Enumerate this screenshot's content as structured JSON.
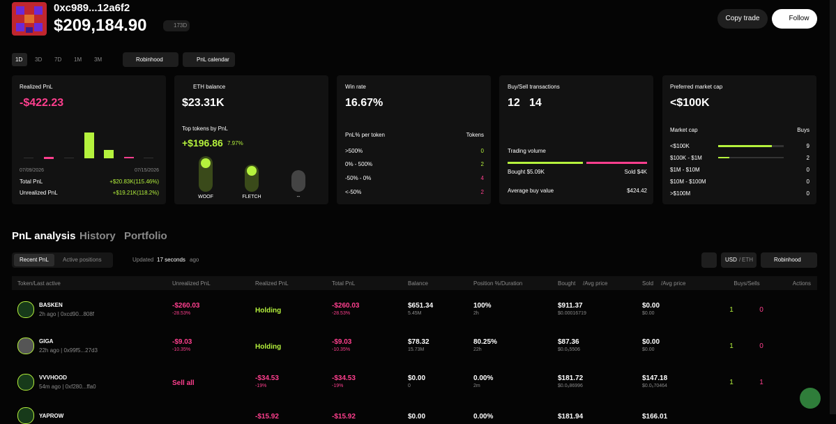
{
  "header": {
    "address": "0xc989...12a6f2",
    "balance": "$209,184.90",
    "age": "173D",
    "copy_trade": "Copy trade",
    "follow": "Follow"
  },
  "toolbar": {
    "timeframes": [
      "1D",
      "3D",
      "7D",
      "1M",
      "3M"
    ],
    "chain": "Robinhood",
    "pnl_calendar": "PnL calendar"
  },
  "cards": {
    "realized": {
      "label": "Realized PnL",
      "value": "-$422.23",
      "date_start": "07/09/2026",
      "date_end": "07/15/2026",
      "total_label": "Total PnL",
      "total_value": "+$20.83K(115.46%)",
      "unrealized_label": "Unrealized PnL",
      "unrealized_value": "+$19.21K(118.2%)"
    },
    "eth": {
      "label": "ETH balance",
      "value": "$23.31K",
      "top_label": "Top tokens by PnL",
      "top_value": "+$196.86",
      "top_pct": "7.97%",
      "tokens": [
        "WOOF",
        "FLETCH",
        "--"
      ]
    },
    "winrate": {
      "label": "Win rate",
      "value": "16.67%",
      "per_token": "PnL% per token",
      "tokens_header": "Tokens",
      "rows": [
        [
          ">500%",
          "0"
        ],
        [
          "0% - 500%",
          "2"
        ],
        [
          "-50% - 0%",
          "4"
        ],
        [
          "<-50%",
          "2"
        ]
      ]
    },
    "buysell": {
      "label": "Buy/Sell transactions",
      "buys": "12",
      "sells": "14",
      "volume_label": "Trading volume",
      "bought": "Bought $5.09K",
      "sold": "Sold $4K",
      "avg_label": "Average buy value",
      "avg_value": "$424.42"
    },
    "mcap": {
      "label": "Preferred market cap",
      "value": "<$100K",
      "header": [
        "Market cap",
        "Buys"
      ],
      "rows": [
        [
          "<$100K",
          "9"
        ],
        [
          "$100K - $1M",
          "2"
        ],
        [
          "$1M - $10M",
          "0"
        ],
        [
          "$10M - $100M",
          "0"
        ],
        [
          ">$100M",
          "0"
        ]
      ]
    }
  },
  "tabs": [
    "PnL analysis",
    "History",
    "Portfolio"
  ],
  "subtabs": [
    "Recent PnL",
    "Active positions"
  ],
  "updated": {
    "prefix": "Updated",
    "value": "17 seconds",
    "suffix": "ago"
  },
  "currency": [
    "USD",
    "/",
    "ETH"
  ],
  "chain2": "Robinhood",
  "table": {
    "columns": [
      "Token/Last active",
      "Unrealized PnL",
      "Realized PnL",
      "Total PnL",
      "Balance",
      "Position %/Duration",
      "Bought",
      "/Avg price",
      "Sold",
      "/Avg price",
      "Buys/Sells",
      "Actions"
    ],
    "rows": [
      [
        [
          "BASKEN",
          "2h ago | 0xcd90...808f"
        ],
        [
          "-$260.03",
          "-28.53%"
        ],
        [
          "Holding"
        ],
        [
          "-$260.03",
          "-28.53%"
        ],
        [
          "$651.34",
          "5.45M"
        ],
        [
          "100%",
          "2h"
        ],
        [
          "$911.37",
          "$0.00016719"
        ],
        [
          "$0.00",
          "$0.00"
        ],
        [
          "1",
          "0"
        ]
      ],
      [
        [
          "GIGA",
          "22h ago | 0x99f5...27d3"
        ],
        [
          "-$9.03",
          "-10.35%"
        ],
        [
          "Holding"
        ],
        [
          "-$9.03",
          "-10.35%"
        ],
        [
          "$78.32",
          "15.73M"
        ],
        [
          "80.25%",
          "22h"
        ],
        [
          "$87.36",
          "$0.0₅5506"
        ],
        [
          "$0.00",
          "$0.00"
        ],
        [
          "1",
          "0"
        ]
      ],
      [
        [
          "VVVHOOD",
          "54m ago | 0xf280...ffa0"
        ],
        [
          "Sell all"
        ],
        [
          "-$34.53",
          "-19%"
        ],
        [
          "-$34.53",
          "-19%"
        ],
        [
          "$0.00",
          "0"
        ],
        [
          "0.00%",
          "2m"
        ],
        [
          "$181.72",
          "$0.0₅86996"
        ],
        [
          "$147.18",
          "$0.0₅70464"
        ],
        [
          "1",
          "1"
        ]
      ],
      [
        [
          "YAPROW"
        ],
        [],
        [
          "-$15.92"
        ],
        [
          "-$15.92"
        ],
        [
          "$0.00"
        ],
        [
          "0.00%"
        ],
        [
          "$181.94"
        ],
        [
          "$166.01"
        ],
        []
      ]
    ]
  }
}
